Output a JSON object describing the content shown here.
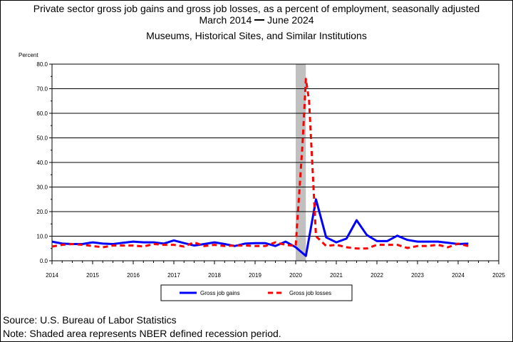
{
  "titles": {
    "line1": "Private sector gross job gains and gross job losses, as a percent of employment, seasonally adjusted",
    "line2_start": "March 2014",
    "line2_end": "June 2024",
    "line3": "Museums, Historical Sites, and Similar Institutions"
  },
  "footer": {
    "source": "Source: U.S. Bureau of Labor Statistics",
    "note": "Note: Shaded area represents NBER defined recession period."
  },
  "colors": {
    "gains": "#0000ff",
    "losses": "#ff0000",
    "recession": "#c0c0c0"
  },
  "chart_data": {
    "type": "line",
    "ylabel": "Percent",
    "xlabel": "",
    "ylim": [
      0,
      80
    ],
    "yticks": [
      "0.0",
      "10.0",
      "20.0",
      "30.0",
      "40.0",
      "50.0",
      "60.0",
      "70.0",
      "80.0"
    ],
    "xlim": [
      2014,
      2025
    ],
    "xticks": [
      "2014",
      "2015",
      "2016",
      "2017",
      "2018",
      "2019",
      "2020",
      "2021",
      "2022",
      "2023",
      "2024",
      "2025"
    ],
    "grid": "horizontal",
    "legend_position": "bottom",
    "recession_shading": [
      2020.0,
      2020.25
    ],
    "series": [
      {
        "name": "Gross job gains",
        "style": "solid",
        "x": [
          2014.0,
          2014.25,
          2014.5,
          2014.75,
          2015.0,
          2015.25,
          2015.5,
          2015.75,
          2016.0,
          2016.25,
          2016.5,
          2016.75,
          2017.0,
          2017.25,
          2017.5,
          2017.75,
          2018.0,
          2018.25,
          2018.5,
          2018.75,
          2019.0,
          2019.25,
          2019.5,
          2019.75,
          2020.0,
          2020.25,
          2020.5,
          2020.75,
          2021.0,
          2021.25,
          2021.5,
          2021.75,
          2022.0,
          2022.25,
          2022.5,
          2022.75,
          2023.0,
          2023.25,
          2023.5,
          2023.75,
          2024.0,
          2024.25
        ],
        "values": [
          7.8,
          7.0,
          6.8,
          6.8,
          7.5,
          7.0,
          6.8,
          7.3,
          7.8,
          7.5,
          7.5,
          7.0,
          8.3,
          7.2,
          6.2,
          6.8,
          7.5,
          6.8,
          6.0,
          7.0,
          7.2,
          7.2,
          6.0,
          7.8,
          5.5,
          2.0,
          25.0,
          9.5,
          7.5,
          9.0,
          16.5,
          10.5,
          8.0,
          8.0,
          10.2,
          8.5,
          7.8,
          7.8,
          7.8,
          7.3,
          6.8,
          7.0
        ]
      },
      {
        "name": "Gross job losses",
        "style": "dashed",
        "x": [
          2014.0,
          2014.25,
          2014.5,
          2014.75,
          2015.0,
          2015.25,
          2015.5,
          2015.75,
          2016.0,
          2016.25,
          2016.5,
          2016.75,
          2017.0,
          2017.25,
          2017.5,
          2017.75,
          2018.0,
          2018.25,
          2018.5,
          2018.75,
          2019.0,
          2019.25,
          2019.5,
          2019.75,
          2020.0,
          2020.17,
          2020.25,
          2020.33,
          2020.5,
          2020.75,
          2021.0,
          2021.25,
          2021.5,
          2021.75,
          2022.0,
          2022.25,
          2022.5,
          2022.75,
          2023.0,
          2023.25,
          2023.5,
          2023.75,
          2024.0,
          2024.25
        ],
        "values": [
          5.8,
          6.5,
          6.8,
          6.5,
          6.0,
          5.5,
          6.2,
          6.2,
          6.2,
          5.8,
          6.8,
          6.5,
          6.5,
          5.8,
          7.5,
          6.0,
          6.5,
          6.0,
          6.2,
          6.2,
          6.0,
          6.0,
          7.5,
          6.5,
          6.0,
          48.0,
          74.0,
          65.0,
          10.0,
          6.0,
          6.5,
          5.5,
          5.0,
          5.0,
          6.5,
          6.5,
          6.5,
          5.2,
          6.0,
          6.0,
          6.5,
          5.5,
          7.0,
          6.0
        ]
      }
    ]
  }
}
